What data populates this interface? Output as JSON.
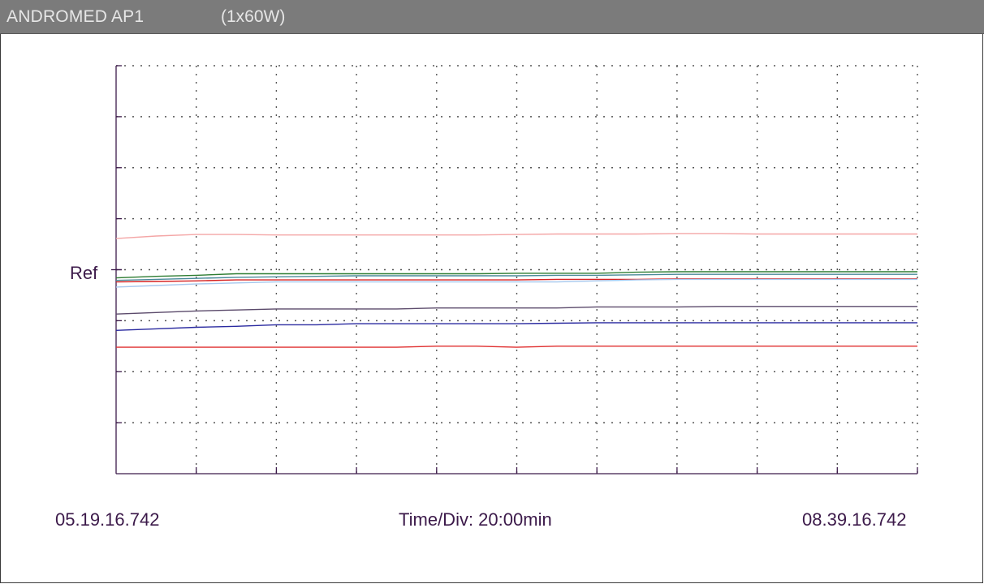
{
  "window": {
    "title_name": "ANDROMED AP1",
    "title_config": "(1x60W)"
  },
  "footer": {
    "start_time": "05.19.16.742",
    "time_div": "Time/Div: 20:00min",
    "end_time": "08.39.16.742"
  },
  "chart_data": {
    "type": "line",
    "reference_label": "Ref",
    "x_divisions": 10,
    "y_divisions": 8,
    "reference_division": 4,
    "grid": true,
    "x": [
      0,
      0.5,
      1,
      1.5,
      2,
      2.5,
      3,
      3.5,
      4,
      4.5,
      5,
      5.5,
      6,
      6.5,
      7,
      7.5,
      8,
      8.5,
      9,
      9.5,
      10
    ],
    "series": [
      {
        "color": "#f4a6a6",
        "values": [
          4.61,
          4.66,
          4.69,
          4.69,
          4.68,
          4.68,
          4.68,
          4.68,
          4.68,
          4.68,
          4.69,
          4.7,
          4.7,
          4.7,
          4.71,
          4.71,
          4.7,
          4.7,
          4.7,
          4.7,
          4.7
        ]
      },
      {
        "color": "#2e7d32",
        "values": [
          3.84,
          3.87,
          3.89,
          3.92,
          3.92,
          3.92,
          3.92,
          3.92,
          3.92,
          3.92,
          3.93,
          3.93,
          3.93,
          3.95,
          3.96,
          3.96,
          3.96,
          3.96,
          3.96,
          3.96,
          3.96
        ]
      },
      {
        "color": "#4a8a9a",
        "values": [
          3.79,
          3.81,
          3.83,
          3.85,
          3.86,
          3.87,
          3.88,
          3.88,
          3.88,
          3.88,
          3.88,
          3.89,
          3.89,
          3.9,
          3.91,
          3.91,
          3.91,
          3.91,
          3.91,
          3.91,
          3.91
        ]
      },
      {
        "color": "#d62020",
        "values": [
          3.76,
          3.77,
          3.78,
          3.8,
          3.8,
          3.8,
          3.8,
          3.8,
          3.8,
          3.8,
          3.8,
          3.81,
          3.81,
          3.81,
          3.82,
          3.82,
          3.82,
          3.82,
          3.82,
          3.82,
          3.82
        ]
      },
      {
        "color": "#a6c8ee",
        "values": [
          3.66,
          3.69,
          3.72,
          3.74,
          3.76,
          3.76,
          3.76,
          3.76,
          3.76,
          3.76,
          3.76,
          3.76,
          3.78,
          3.8,
          3.81,
          3.81,
          3.81,
          3.81,
          3.81,
          3.81,
          3.81
        ]
      },
      {
        "color": "#5b4a6b",
        "values": [
          3.13,
          3.16,
          3.19,
          3.21,
          3.23,
          3.23,
          3.23,
          3.23,
          3.25,
          3.25,
          3.25,
          3.25,
          3.27,
          3.27,
          3.27,
          3.28,
          3.28,
          3.28,
          3.28,
          3.28,
          3.28
        ]
      },
      {
        "color": "#2a2aa0",
        "values": [
          2.81,
          2.84,
          2.87,
          2.89,
          2.92,
          2.92,
          2.94,
          2.94,
          2.94,
          2.94,
          2.94,
          2.95,
          2.96,
          2.96,
          2.96,
          2.96,
          2.96,
          2.96,
          2.96,
          2.96,
          2.96
        ]
      },
      {
        "color": "#e03030",
        "values": [
          2.48,
          2.48,
          2.48,
          2.48,
          2.48,
          2.48,
          2.48,
          2.48,
          2.5,
          2.5,
          2.48,
          2.5,
          2.5,
          2.5,
          2.5,
          2.5,
          2.5,
          2.5,
          2.5,
          2.5,
          2.5
        ]
      }
    ]
  }
}
